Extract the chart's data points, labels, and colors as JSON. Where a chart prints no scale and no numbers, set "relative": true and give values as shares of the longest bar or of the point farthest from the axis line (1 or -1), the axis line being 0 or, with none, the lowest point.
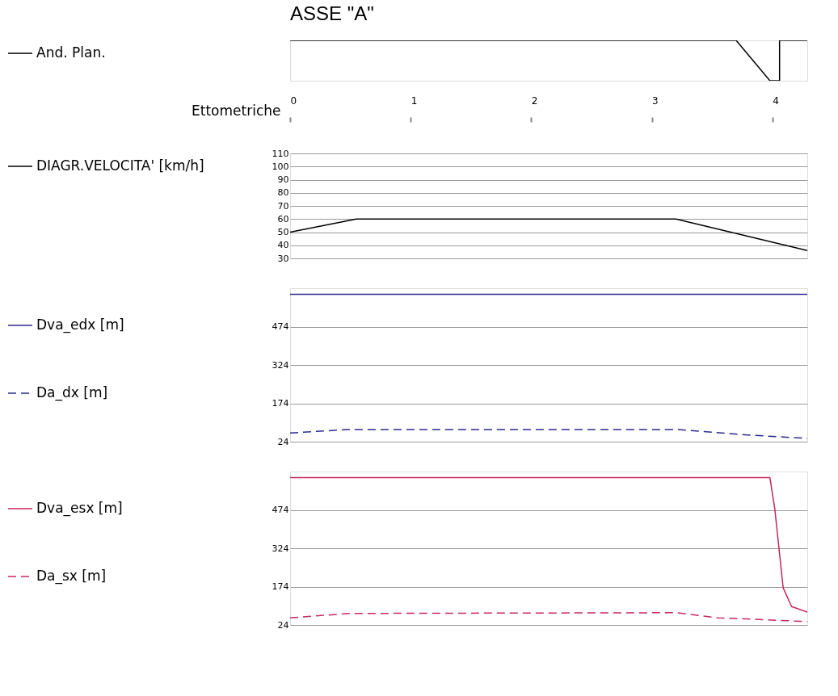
{
  "chart_data": [
    {
      "type": "line",
      "title": "ASSE \"A\"",
      "relative": true,
      "xlabel": "Ettometriche",
      "xlim": [
        0,
        4.29
      ],
      "xticks": [
        0,
        1,
        2,
        3,
        4
      ],
      "tick_labels": "x",
      "legend": "left",
      "grid": false,
      "series": [
        {
          "name": "And. Plan.",
          "color": "#000000",
          "line_style": "solid",
          "x": [
            0,
            3.7,
            3.98,
            4.06,
            4.06,
            4.29
          ],
          "values": [
            1,
            1,
            0,
            0,
            1,
            1
          ]
        }
      ]
    },
    {
      "type": "line",
      "xlim": [
        0,
        4.29
      ],
      "ylim": [
        30,
        110
      ],
      "yticks": [
        30,
        40,
        50,
        60,
        70,
        80,
        90,
        100,
        110
      ],
      "tick_labels": "y",
      "legend": "left",
      "grid": "y",
      "series": [
        {
          "name": "DIAGR.VELOCITA' [km/h]",
          "color": "#000000",
          "line_style": "solid",
          "x": [
            0,
            0.55,
            3.2,
            4.29
          ],
          "values": [
            50,
            60,
            60,
            36
          ]
        }
      ]
    },
    {
      "type": "line",
      "xlim": [
        0,
        4.29
      ],
      "ylim": [
        24,
        624
      ],
      "yticks": [
        24,
        174,
        324,
        474
      ],
      "tick_labels": "y",
      "legend": "left",
      "grid": "y",
      "series": [
        {
          "name": "Dva_edx [m]",
          "color": "#2b2b8f",
          "line_style": "solid",
          "x": [
            0,
            4.29
          ],
          "values": [
            600,
            600
          ]
        },
        {
          "name": "Da_dx [m]",
          "color": "#2b2b8f",
          "line_style": "dashed",
          "x": [
            0,
            0.47,
            3.22,
            3.83,
            4.29
          ],
          "values": [
            58,
            71,
            71,
            49,
            37
          ]
        }
      ]
    },
    {
      "type": "line",
      "xlim": [
        0,
        4.29
      ],
      "ylim": [
        24,
        624
      ],
      "yticks": [
        24,
        174,
        324,
        474
      ],
      "tick_labels": "y",
      "legend": "left",
      "grid": "y",
      "series": [
        {
          "name": "Dva_esx [m]",
          "color": "#c8285a",
          "line_style": "solid",
          "x": [
            0,
            3.98,
            4.02,
            4.09,
            4.16,
            4.29
          ],
          "values": [
            600,
            600,
            480,
            169,
            96,
            74
          ]
        },
        {
          "name": "Da_sx [m]",
          "color": "#c8285a",
          "line_style": "dashed",
          "x": [
            0,
            0.5,
            3.2,
            3.55,
            3.96,
            4.29
          ],
          "values": [
            52,
            69,
            72,
            52,
            44,
            37
          ]
        }
      ]
    }
  ]
}
